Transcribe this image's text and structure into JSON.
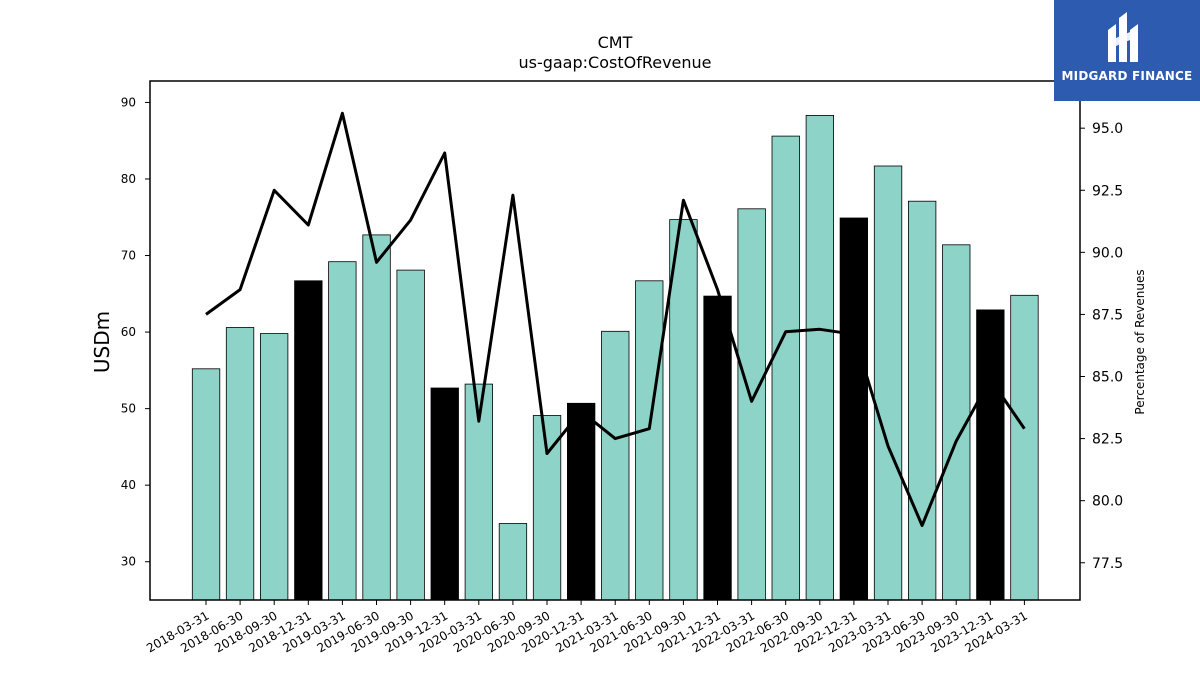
{
  "chart_data": {
    "type": "bar",
    "title": "CMT",
    "subtitle": "us-gaap:CostOfRevenue",
    "ylabel": "USDm",
    "y2label": "Percentage of Revenues",
    "ylim": [
      25,
      92.8
    ],
    "y2lim": [
      76.0,
      96.9
    ],
    "yticks": [
      30,
      40,
      50,
      60,
      70,
      80,
      90
    ],
    "y2ticks": [
      "77.5",
      "80.0",
      "82.5",
      "85.0",
      "87.5",
      "90.0",
      "92.5",
      "95.0"
    ],
    "categories": [
      "2018-03-31",
      "2018-06-30",
      "2018-09-30",
      "2018-12-31",
      "2019-03-31",
      "2019-06-30",
      "2019-09-30",
      "2019-12-31",
      "2020-03-31",
      "2020-06-30",
      "2020-09-30",
      "2020-12-31",
      "2021-03-31",
      "2021-06-30",
      "2021-09-30",
      "2021-12-31",
      "2022-03-31",
      "2022-06-30",
      "2022-09-30",
      "2022-12-31",
      "2023-03-31",
      "2023-06-30",
      "2023-09-30",
      "2023-12-31",
      "2024-03-31"
    ],
    "series": [
      {
        "type": "bar",
        "values": [
          55.2,
          60.6,
          59.8,
          66.7,
          69.2,
          72.7,
          68.1,
          52.7,
          53.2,
          35.0,
          49.1,
          50.7,
          60.1,
          66.7,
          74.7,
          64.7,
          76.1,
          85.6,
          88.3,
          74.9,
          81.7,
          77.1,
          71.4,
          62.9,
          64.8
        ],
        "highlight_indices": [
          3,
          7,
          11,
          15,
          19,
          23
        ],
        "color": "#8dd3c7",
        "highlight_color": "#000000"
      },
      {
        "type": "line",
        "axis": "right",
        "values": [
          87.5,
          88.5,
          92.5,
          91.1,
          95.6,
          89.6,
          91.3,
          94.0,
          83.2,
          92.3,
          81.9,
          83.6,
          82.5,
          82.9,
          92.1,
          88.5,
          84.0,
          86.8,
          86.9,
          86.7,
          82.2,
          79.0,
          82.4,
          84.9,
          82.9
        ],
        "color": "#000000"
      }
    ]
  },
  "logo": {
    "text": "MIDGARD FINANCE",
    "color": "#2d5bb0"
  }
}
